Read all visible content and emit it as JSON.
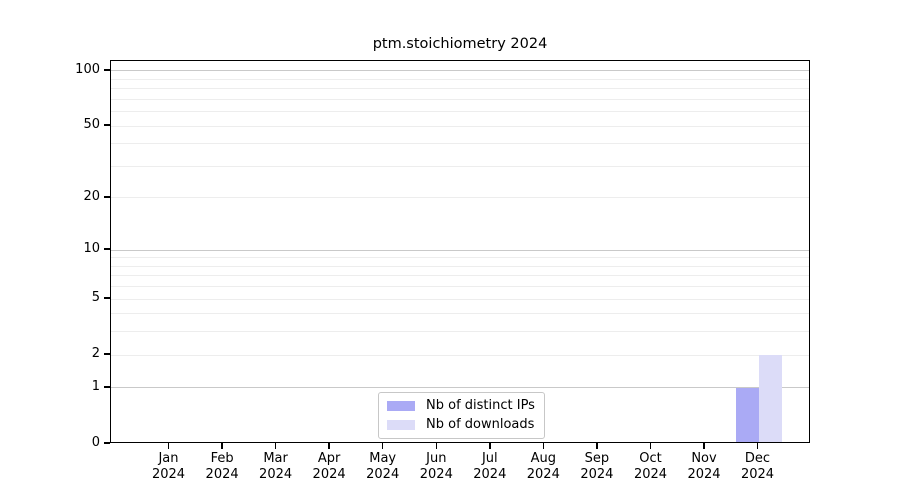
{
  "chart_data": {
    "type": "bar",
    "title": "ptm.stoichiometry 2024",
    "x_ticks": [
      {
        "label": "Jan",
        "sublabel": "2024"
      },
      {
        "label": "Feb",
        "sublabel": "2024"
      },
      {
        "label": "Mar",
        "sublabel": "2024"
      },
      {
        "label": "Apr",
        "sublabel": "2024"
      },
      {
        "label": "May",
        "sublabel": "2024"
      },
      {
        "label": "Jun",
        "sublabel": "2024"
      },
      {
        "label": "Jul",
        "sublabel": "2024"
      },
      {
        "label": "Aug",
        "sublabel": "2024"
      },
      {
        "label": "Sep",
        "sublabel": "2024"
      },
      {
        "label": "Oct",
        "sublabel": "2024"
      },
      {
        "label": "Nov",
        "sublabel": "2024"
      },
      {
        "label": "Dec",
        "sublabel": "2024"
      }
    ],
    "y_ticks": [
      0,
      1,
      2,
      5,
      10,
      20,
      50,
      100
    ],
    "y_scale": "log1p",
    "ylim": [
      0,
      113
    ],
    "grid": "horizontal",
    "legend_position": "lower center inside",
    "series": [
      {
        "name": "Nb of distinct IPs",
        "color": "#aaaaf5",
        "values": [
          0,
          0,
          0,
          0,
          0,
          0,
          0,
          0,
          0,
          0,
          0,
          1
        ]
      },
      {
        "name": "Nb of downloads",
        "color": "#dcdcf8",
        "values": [
          0,
          0,
          0,
          0,
          0,
          0,
          0,
          0,
          0,
          0,
          0,
          2
        ]
      }
    ],
    "colors": {
      "major_grid": "#c9c9c9",
      "minor_grid": "#ededed",
      "axis": "#000000",
      "text": "#000000"
    }
  }
}
